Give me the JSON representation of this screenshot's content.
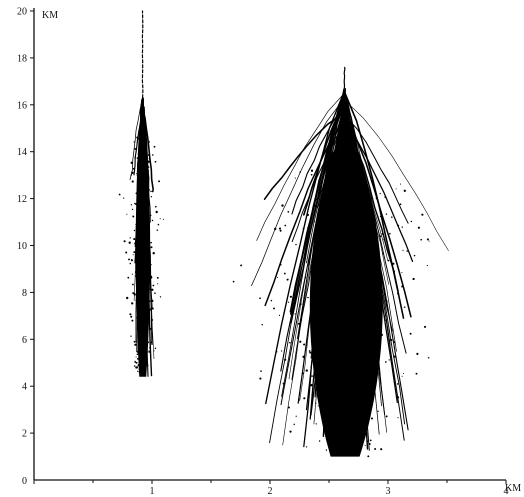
{
  "chart_data": {
    "type": "scatter",
    "title": "",
    "x_unit_label": "KM",
    "y_unit_label": "KM",
    "xlim": [
      0,
      4
    ],
    "ylim": [
      0,
      20
    ],
    "x_ticks": [
      {
        "value": 0,
        "label": "0"
      },
      {
        "value": 1,
        "label": "1"
      },
      {
        "value": 2,
        "label": "2"
      },
      {
        "value": 3,
        "label": "3"
      },
      {
        "value": 4,
        "label": "4"
      }
    ],
    "x_minor_ticks": [
      0.5,
      1.5,
      2.5,
      3.5
    ],
    "y_ticks": [
      {
        "value": 2,
        "label": "2"
      },
      {
        "value": 4,
        "label": "4"
      },
      {
        "value": 6,
        "label": "6"
      },
      {
        "value": 8,
        "label": "8"
      },
      {
        "value": 10,
        "label": "10"
      },
      {
        "value": 12,
        "label": "12"
      },
      {
        "value": 14,
        "label": "14"
      },
      {
        "value": 16,
        "label": "16"
      },
      {
        "value": 18,
        "label": "18"
      },
      {
        "value": 20,
        "label": "20"
      }
    ],
    "clusters": [
      {
        "center_x": 0.92,
        "base_y": 4.4,
        "top_y": 16.3,
        "core_top_y": 15.2,
        "max_half_width": 0.13,
        "spike_top_y": 20.0,
        "traces": 70,
        "scatter_points": 240
      },
      {
        "center_x": 2.63,
        "base_y": 1.0,
        "top_y": 16.7,
        "core_top_y": 14.0,
        "max_half_width": 0.75,
        "spike_top_y": 17.6,
        "traces": 140,
        "scatter_points": 320
      }
    ]
  }
}
